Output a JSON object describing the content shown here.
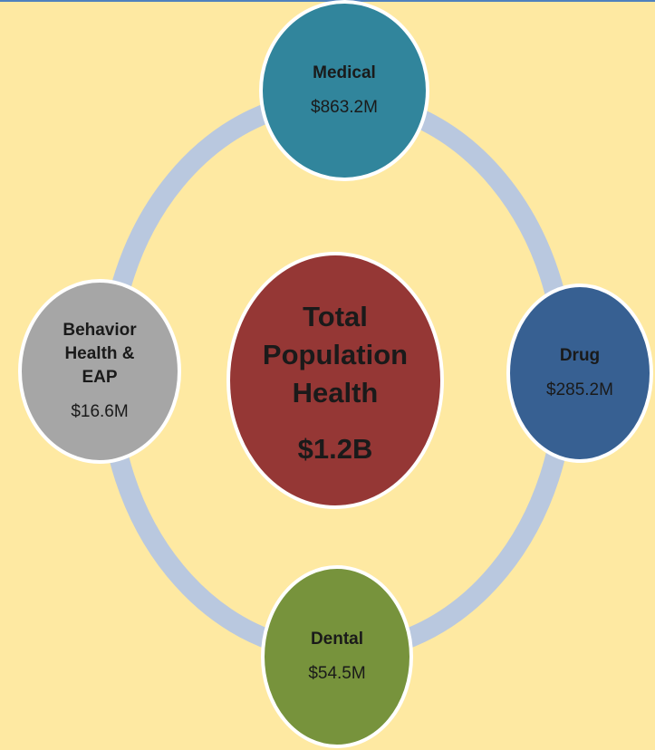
{
  "center": {
    "title_lines": [
      "Total",
      "Population",
      "Health"
    ],
    "value": "$1.2B"
  },
  "nodes": [
    {
      "label_lines": [
        "Medical"
      ],
      "value": "$863.2M"
    },
    {
      "label_lines": [
        "Drug"
      ],
      "value": "$285.2M"
    },
    {
      "label_lines": [
        "Dental"
      ],
      "value": "$54.5M"
    },
    {
      "label_lines": [
        "Behavior",
        "Health &",
        "EAP"
      ],
      "value": "$16.6M"
    }
  ]
}
